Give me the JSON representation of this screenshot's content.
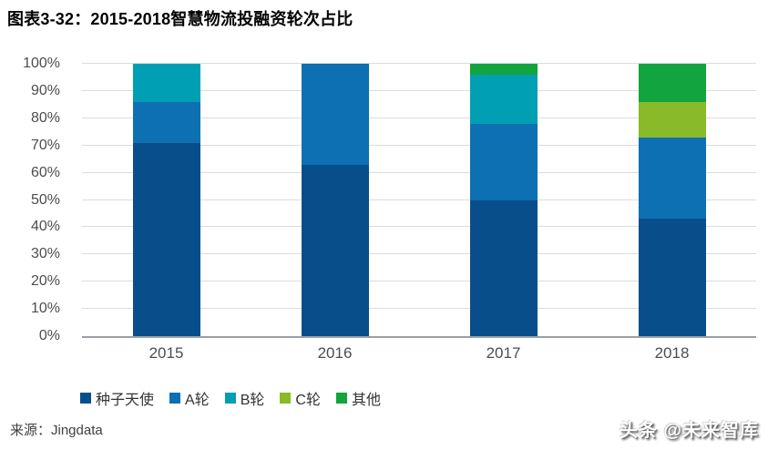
{
  "header": {
    "title": "图表3-32：2015-2018智慧物流投融资轮次占比"
  },
  "footer": {
    "source": "来源：Jingdata",
    "watermark": "头条 @未来智库"
  },
  "colors": {
    "seed_angel": "#084e8a",
    "round_a": "#0c70b2",
    "round_b": "#009fb4",
    "round_c": "#89ba29",
    "other": "#12a43e",
    "gridline": "#dcdcdc",
    "axis_line": "#9aa0a6",
    "tick_text": "#4d4d4d"
  },
  "chart_data": {
    "type": "bar",
    "stacked": true,
    "percent": true,
    "title": "图表3-32：2015-2018智慧物流投融资轮次占比",
    "xlabel": "",
    "ylabel": "",
    "ylim": [
      0,
      100
    ],
    "grid": true,
    "legend_position": "bottom-left",
    "categories": [
      "2015",
      "2016",
      "2017",
      "2018"
    ],
    "series": [
      {
        "name": "种子天使",
        "color": "#084e8a",
        "values": [
          71,
          63,
          50,
          43
        ]
      },
      {
        "name": "A轮",
        "color": "#0c70b2",
        "values": [
          15,
          37,
          28,
          30
        ]
      },
      {
        "name": "B轮",
        "color": "#009fb4",
        "values": [
          14,
          0,
          18,
          0
        ]
      },
      {
        "name": "C轮",
        "color": "#89ba29",
        "values": [
          0,
          0,
          0,
          13
        ]
      },
      {
        "name": "其他",
        "color": "#12a43e",
        "values": [
          0,
          0,
          4,
          14
        ]
      }
    ],
    "yticks": [
      {
        "value": 0,
        "label": "0%"
      },
      {
        "value": 10,
        "label": "10%"
      },
      {
        "value": 20,
        "label": "20%"
      },
      {
        "value": 30,
        "label": "30%"
      },
      {
        "value": 40,
        "label": "40%"
      },
      {
        "value": 50,
        "label": "50%"
      },
      {
        "value": 60,
        "label": "60%"
      },
      {
        "value": 70,
        "label": "70%"
      },
      {
        "value": 80,
        "label": "80%"
      },
      {
        "value": 90,
        "label": "90%"
      },
      {
        "value": 100,
        "label": "100%"
      }
    ]
  }
}
